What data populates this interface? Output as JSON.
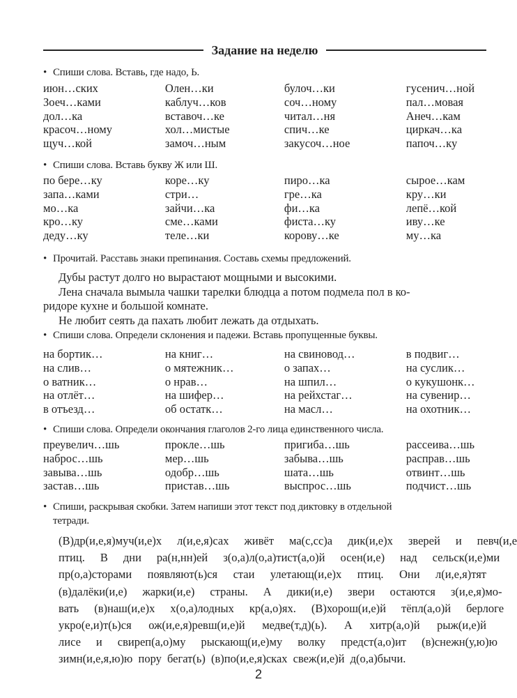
{
  "header": {
    "title": "Задание на неделю"
  },
  "tasks": [
    {
      "instruction": "Спиши слова. Вставь, где надо, Ь.",
      "rows": [
        [
          "июн…ских",
          "Олен…ки",
          "булоч…ки",
          "гусенич…ной"
        ],
        [
          "Зоеч…ками",
          "каблуч…ков",
          "соч…ному",
          "пал…мовая"
        ],
        [
          "дол…ка",
          "вставоч…ке",
          "читал…ня",
          "Анеч…кам"
        ],
        [
          "красоч…ному",
          "хол…мистые",
          "спич…ке",
          "циркач…ка"
        ],
        [
          "щуч…кой",
          "замоч…ным",
          "закусоч…ное",
          "папоч…ку"
        ]
      ]
    },
    {
      "instruction": "Спиши слова. Вставь букву Ж или Ш.",
      "rows": [
        [
          "по бере…ку",
          "коре…ку",
          "пиро…ка",
          "сырое…кам"
        ],
        [
          "запа…ками",
          "стри…",
          "гре…ка",
          "кру…ки"
        ],
        [
          "мо…ка",
          "зайчи…ка",
          "фи…ка",
          "лепё…кой"
        ],
        [
          "кро…ку",
          "сме…ками",
          "фиста…ку",
          "иву…ке"
        ],
        [
          "деду…ку",
          "теле…ки",
          "корову…ке",
          "му…ка"
        ]
      ]
    },
    {
      "instruction": "Прочитай. Расставь знаки препинания. Составь схемы предложений.",
      "paragraphs": [
        "Дубы растут долго но вырастают мощными и высокими.",
        "Лена сначала вымыла чашки тарелки блюдца а потом подмела пол в ко-",
        "ридоре кухне и большой комнате.",
        "Не любит сеять да пахать любит лежать да отдыхать."
      ]
    },
    {
      "instruction": "Спиши слова. Определи склонения и падежи. Вставь пропущенные буквы.",
      "rows": [
        [
          "на бортик…",
          "на книг…",
          "на свиновод…",
          "в подвиг…"
        ],
        [
          "на слив…",
          "о мятежник…",
          "о запах…",
          "на суслик…"
        ],
        [
          "о ватник…",
          "о нрав…",
          "на шпил…",
          "о кукушонк…"
        ],
        [
          "на отлёт…",
          "на шифер…",
          "на рейхстаг…",
          "на сувенир…"
        ],
        [
          "в отъезд…",
          "об остатк…",
          "на масл…",
          "на охотник…"
        ]
      ]
    },
    {
      "instruction": "Спиши слова. Определи окончания глаголов 2-го лица единственного числа.",
      "rows": [
        [
          "преувелич…шь",
          "прокле…шь",
          "пригиба…шь",
          "рассеива…шь"
        ],
        [
          "наброс…шь",
          "мер…шь",
          "забыва…шь",
          "расправ…шь"
        ],
        [
          "завыва…шь",
          "одобр…шь",
          "шата…шь",
          "отвинт…шь"
        ],
        [
          "застав…шь",
          "пристав…шь",
          "выспрос…шь",
          "подчист…шь"
        ]
      ]
    },
    {
      "instruction_line1": "Спиши, раскрывая скобки. Затем напиши этот текст под диктовку в отдельной",
      "instruction_line2": "тетради.",
      "lines": [
        "(В)др(и,е,я)муч(и,е)х л(и,е,я)сах живёт ма(с,сс)а дик(и,е)х зверей и певч(и,е)х",
        "птиц. В дни ра(н,нн)ей з(о,а)л(о,а)тист(а,о)й осен(и,е) над сельск(и,е)ми",
        "пр(о,а)сторами появляют(ь)ся стаи улетающ(и,е)х птиц. Они л(и,е,я)тят",
        "(в)далёки(и,е) жарки(и,е) страны. А дики(и,е) звери остаются з(и,е,я)мо-",
        "вать (в)наш(и,е)х х(о,а)лодных кр(а,о)ях. (В)хорош(и,е)й тёпл(а,о)й берлоге",
        "укро(е,и)т(ь)ся ож(и,е,я)ревш(и,е)й медве(т,д)(ь). А хитр(а,о)й рыж(и,е)й",
        "лисе и свиреп(а,о)му рыскающ(и,е)му волку предст(а,о)ит (в)снежн(у,ю)ю",
        "зимн(и,е,я,ю)ю пору бегат(ь) (в)по(и,е,я)сках свеж(и,е)й д(о,а)бычи."
      ]
    }
  ],
  "footer": {
    "page_number": "2"
  }
}
